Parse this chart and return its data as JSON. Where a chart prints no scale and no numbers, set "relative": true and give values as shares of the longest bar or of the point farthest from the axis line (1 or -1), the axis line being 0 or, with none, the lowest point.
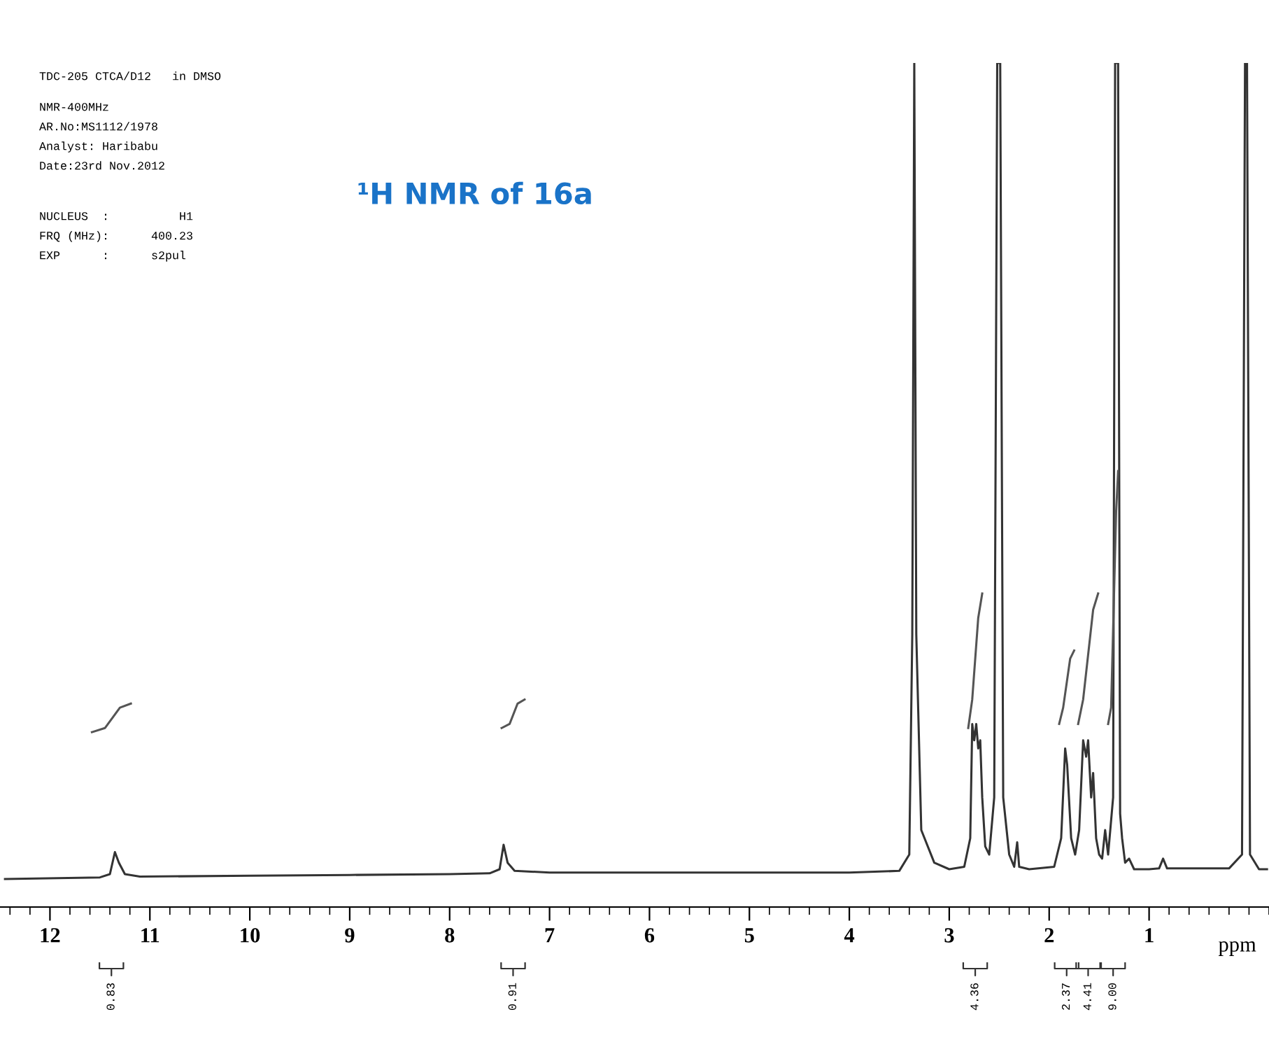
{
  "chart_data": {
    "type": "line",
    "title": "¹H NMR of 16a",
    "xlabel": "ppm",
    "relative": true,
    "xlim": [
      12.5,
      -0.2
    ],
    "xticks": [
      12,
      11,
      10,
      9,
      8,
      7,
      6,
      5,
      4,
      3,
      2,
      1
    ],
    "grid": false,
    "legend": false,
    "marker": "none",
    "line_style": "solid",
    "series": [
      {
        "color": "#333333",
        "x": [
          12.45,
          11.5,
          11.4,
          11.35,
          11.31,
          11.25,
          11.1,
          10.0,
          9.0,
          8.0,
          7.6,
          7.5,
          7.46,
          7.42,
          7.35,
          7.0,
          6.0,
          5.0,
          4.0,
          3.5,
          3.4,
          3.37,
          3.35,
          3.33,
          3.28,
          3.15,
          3.0,
          2.85,
          2.79,
          2.77,
          2.75,
          2.73,
          2.71,
          2.69,
          2.67,
          2.64,
          2.6,
          2.55,
          2.52,
          2.49,
          2.46,
          2.4,
          2.35,
          2.32,
          2.3,
          2.2,
          1.95,
          1.88,
          1.84,
          1.82,
          1.78,
          1.74,
          1.7,
          1.66,
          1.63,
          1.61,
          1.58,
          1.56,
          1.53,
          1.5,
          1.47,
          1.44,
          1.41,
          1.36,
          1.34,
          1.31,
          1.29,
          1.27,
          1.24,
          1.2,
          1.15,
          1.0,
          0.9,
          0.86,
          0.82,
          0.5,
          0.2,
          0.07,
          0.04,
          0.02,
          -0.01,
          -0.1,
          -0.18
        ],
        "values": [
          0,
          0.002,
          0.006,
          0.033,
          0.02,
          0.006,
          0.003,
          0.004,
          0.005,
          0.006,
          0.007,
          0.012,
          0.042,
          0.02,
          0.01,
          0.008,
          0.008,
          0.008,
          0.008,
          0.01,
          0.03,
          0.3,
          1,
          0.3,
          0.06,
          0.02,
          0.012,
          0.015,
          0.05,
          0.19,
          0.17,
          0.19,
          0.16,
          0.17,
          0.1,
          0.04,
          0.03,
          0.1,
          1,
          1,
          0.1,
          0.03,
          0.015,
          0.045,
          0.015,
          0.012,
          0.015,
          0.05,
          0.16,
          0.14,
          0.05,
          0.03,
          0.06,
          0.17,
          0.15,
          0.17,
          0.1,
          0.13,
          0.05,
          0.03,
          0.025,
          0.06,
          0.03,
          0.1,
          1,
          1,
          0.08,
          0.05,
          0.02,
          0.025,
          0.012,
          0.012,
          0.013,
          0.025,
          0.013,
          0.013,
          0.013,
          0.03,
          1,
          1,
          0.03,
          0.012,
          0.012
        ]
      },
      {
        "color": "#555555",
        "x": [
          11.58,
          11.45,
          11.3,
          11.19
        ],
        "values": [
          0.18,
          0.185,
          0.21,
          0.215
        ]
      },
      {
        "color": "#555555",
        "x": [
          7.48,
          7.4,
          7.32,
          7.25
        ],
        "values": [
          0.185,
          0.19,
          0.215,
          0.22
        ]
      },
      {
        "color": "#555555",
        "x": [
          2.81,
          2.77,
          2.71,
          2.67
        ],
        "values": [
          0.185,
          0.22,
          0.32,
          0.35
        ]
      },
      {
        "color": "#555555",
        "x": [
          1.9,
          1.86,
          1.79,
          1.75
        ],
        "values": [
          0.19,
          0.21,
          0.27,
          0.28
        ]
      },
      {
        "color": "#555555",
        "x": [
          1.71,
          1.66,
          1.56,
          1.51
        ],
        "values": [
          0.19,
          0.22,
          0.33,
          0.35
        ]
      },
      {
        "color": "#555555",
        "x": [
          1.41,
          1.38,
          1.33,
          1.31
        ],
        "values": [
          0.19,
          0.21,
          0.45,
          0.5
        ]
      }
    ],
    "annotations": [
      "TDC-205 CTCA/D12   in DMSO",
      "NMR-400MHz",
      "AR.No:MS1112/1978",
      "Analyst: Haribabu",
      "Date:23rd Nov.2012",
      "NUCLEUS  :          H1",
      "FRQ (MHz):      400.23",
      "EXP      :      s2pul",
      "0.83",
      "0.91",
      "4.36",
      "2.37",
      "4.41",
      "9.00"
    ]
  }
}
